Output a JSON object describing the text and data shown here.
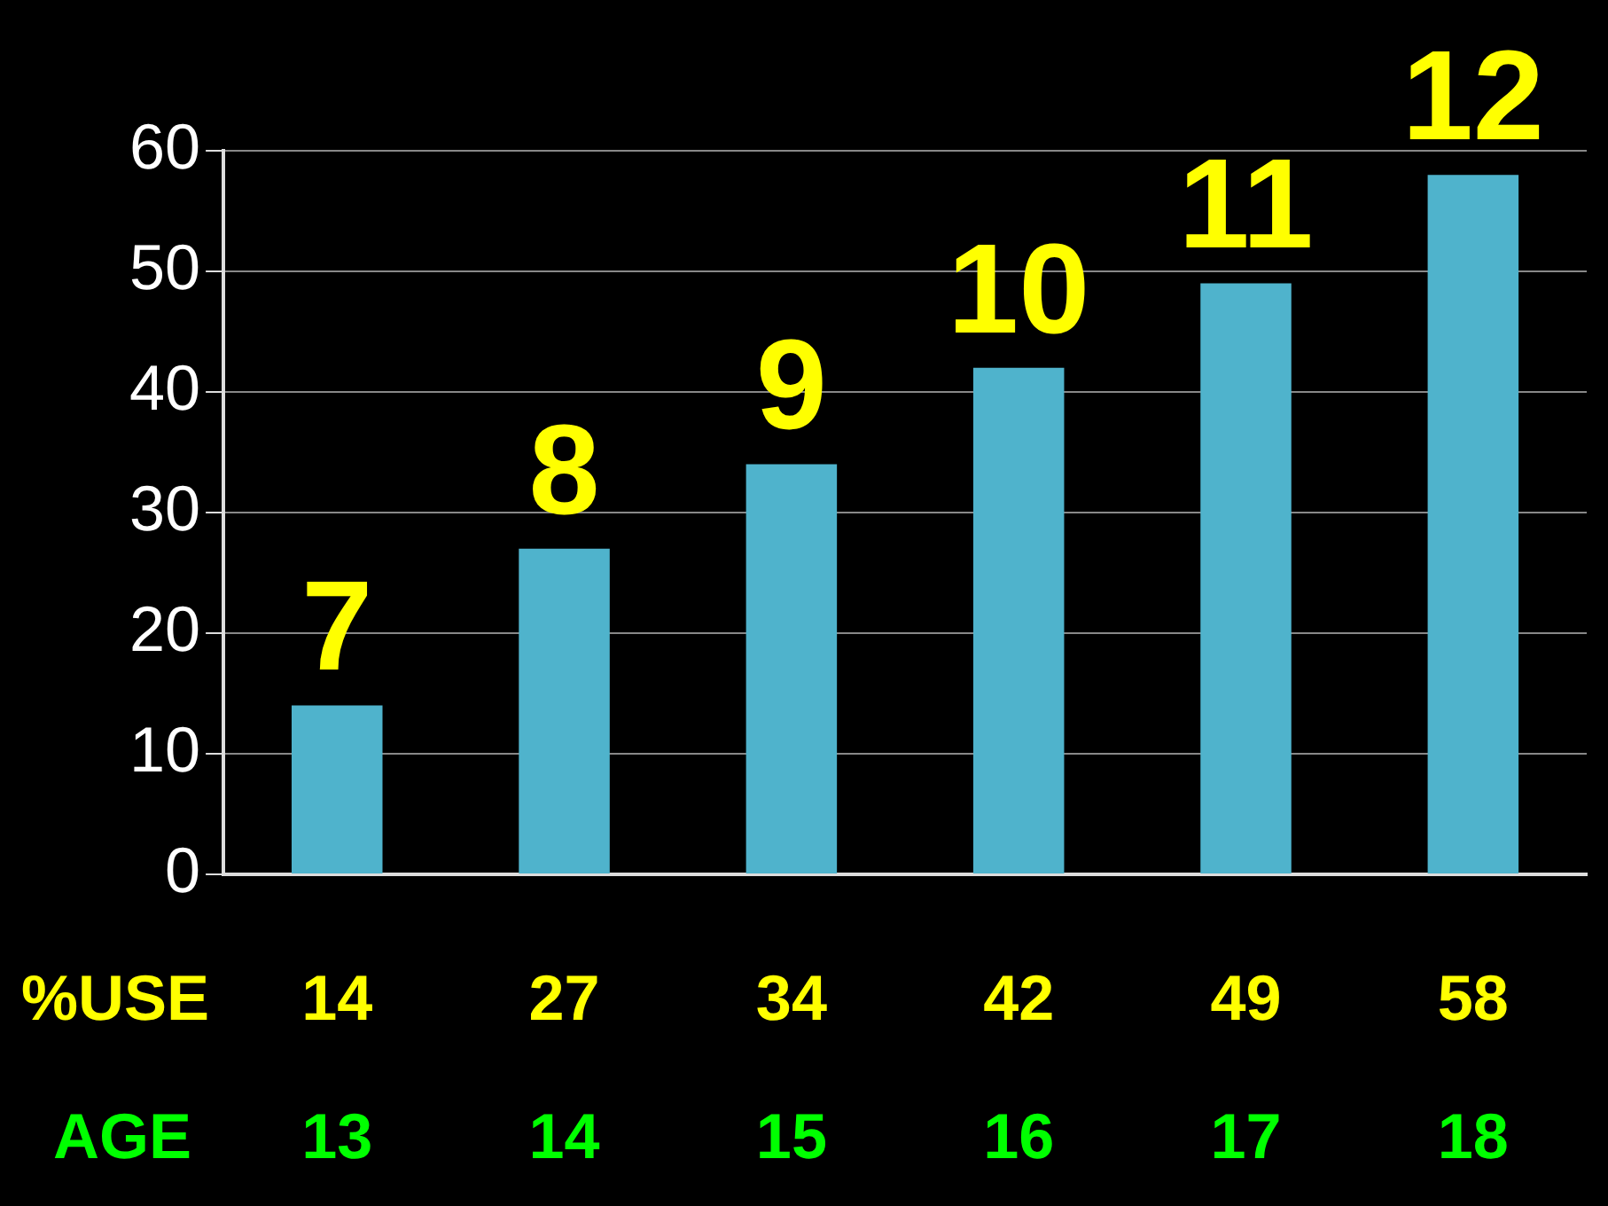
{
  "chart_data": {
    "type": "bar",
    "xlabel": "AGE",
    "ylabel": "%USE",
    "categories": [
      "13",
      "14",
      "15",
      "16",
      "17",
      "18"
    ],
    "values": [
      14,
      27,
      34,
      42,
      49,
      58
    ],
    "color": "#4fb3cc",
    "ylim": [
      0,
      60
    ],
    "yticks": [
      0,
      10,
      20,
      30,
      40,
      50,
      60
    ],
    "grid": "y",
    "legend": false,
    "data_labels": true,
    "annotations": [
      {
        "text": "7",
        "x": "13",
        "y": 14
      },
      {
        "text": "8",
        "x": "14",
        "y": 27
      },
      {
        "text": "9",
        "x": "15",
        "y": 34
      },
      {
        "text": "10",
        "x": "16",
        "y": 42
      },
      {
        "text": "11",
        "x": "17",
        "y": 49
      },
      {
        "text": "12",
        "x": "18",
        "y": 58
      }
    ]
  }
}
